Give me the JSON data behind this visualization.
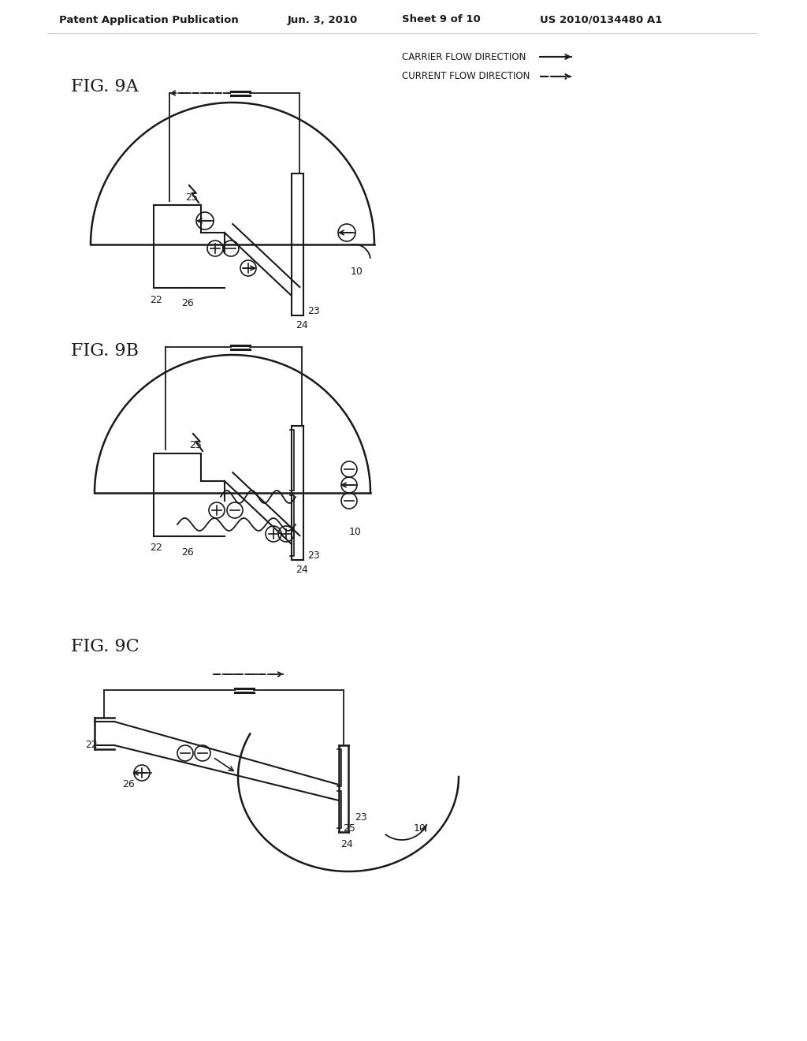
{
  "title_header": "Patent Application Publication",
  "date": "Jun. 3, 2010",
  "sheet": "Sheet 9 of 10",
  "patent_num": "US 2010/0134480 A1",
  "legend_carrier": "CARRIER FLOW DIRECTION",
  "legend_current": "CURRENT FLOW DIRECTION",
  "bg_color": "#ffffff",
  "line_color": "#1a1a1a",
  "fig9a_label": "FIG. 9A",
  "fig9b_label": "FIG. 9B",
  "fig9c_label": "FIG. 9C"
}
